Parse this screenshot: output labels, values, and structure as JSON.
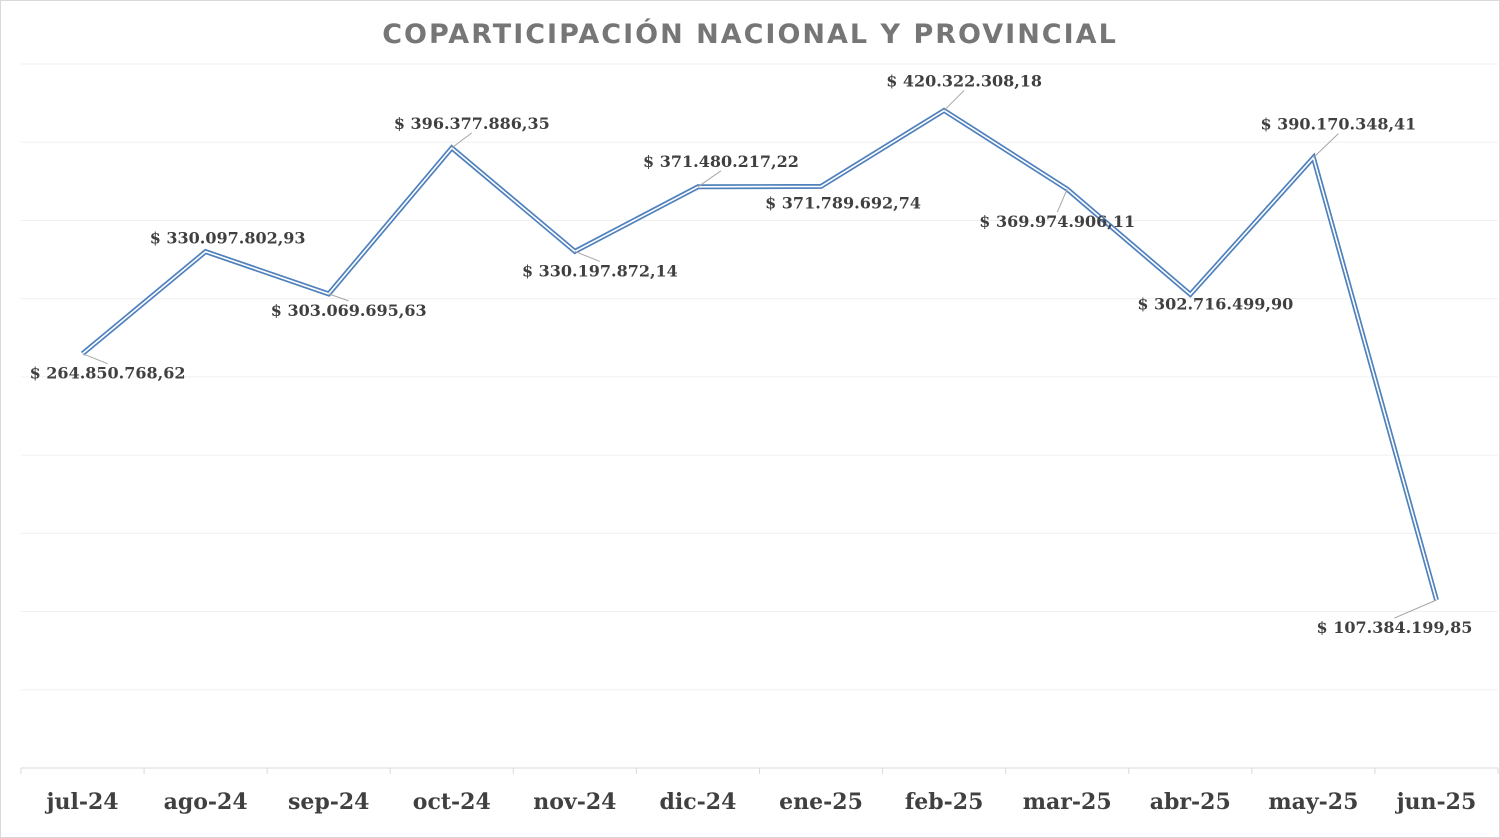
{
  "chart_data": {
    "type": "line",
    "title": "COPARTICIPACIÓN NACIONAL Y PROVINCIAL",
    "xlabel": "",
    "ylabel": "",
    "categories": [
      "jul-24",
      "ago-24",
      "sep-24",
      "oct-24",
      "nov-24",
      "dic-24",
      "ene-25",
      "feb-25",
      "mar-25",
      "abr-25",
      "may-25",
      "jun-25"
    ],
    "series": [
      {
        "values": [
          264850768.62,
          330097802.93,
          303069695.63,
          396377886.35,
          330197872.14,
          371480217.22,
          371789692.74,
          420322308.18,
          369974906.11,
          302716499.9,
          390170348.41,
          107384199.85
        ],
        "data_labels": [
          "$ 264.850.768,62",
          "$ 330.097.802,93",
          "$ 303.069.695,63",
          "$ 396.377.886,35",
          "$ 330.197.872,14",
          "$ 371.480.217,22",
          "$ 371.789.692,74",
          "$ 420.322.308,18",
          "$ 369.974.906,11",
          "$ 302.716.499,90",
          "$ 390.170.348,41",
          "$ 107.384.199,85"
        ]
      }
    ],
    "ylim": [
      0,
      450000000
    ],
    "grid": true,
    "legend": "none",
    "colors": {
      "line": "#4f81bd",
      "line_inner": "#ffffff",
      "grid": "#f0f0f0",
      "axis": "#d9d9d9",
      "leader": "#a6a6a6"
    }
  }
}
